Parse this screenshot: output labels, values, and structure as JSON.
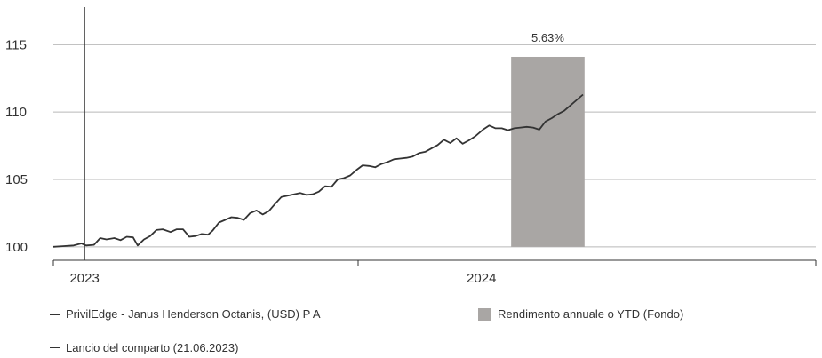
{
  "chart_data": {
    "type": "line",
    "ylim": [
      99,
      117
    ],
    "yticks": [
      100,
      105,
      110,
      115
    ],
    "xticks": [
      {
        "label": "2023",
        "date": "2023-06-21"
      },
      {
        "label": "2024",
        "date": "2024-03-01"
      }
    ],
    "xlim": [
      "2023-06-01",
      "2024-10-01"
    ],
    "launch_date": "2023-06-21",
    "series": [
      {
        "name": "PrivilEdge - Janus Henderson Octanis, (USD) P A",
        "color": "#333333",
        "points": [
          [
            "2023-06-01",
            100.0
          ],
          [
            "2023-06-07",
            100.05
          ],
          [
            "2023-06-14",
            100.1
          ],
          [
            "2023-06-19",
            100.25
          ],
          [
            "2023-06-22",
            100.1
          ],
          [
            "2023-06-27",
            100.15
          ],
          [
            "2023-07-01",
            100.65
          ],
          [
            "2023-07-05",
            100.55
          ],
          [
            "2023-07-10",
            100.65
          ],
          [
            "2023-07-14",
            100.5
          ],
          [
            "2023-07-18",
            100.75
          ],
          [
            "2023-07-22",
            100.7
          ],
          [
            "2023-07-25",
            100.1
          ],
          [
            "2023-07-29",
            100.55
          ],
          [
            "2023-08-02",
            100.8
          ],
          [
            "2023-08-06",
            101.25
          ],
          [
            "2023-08-10",
            101.3
          ],
          [
            "2023-08-15",
            101.1
          ],
          [
            "2023-08-19",
            101.3
          ],
          [
            "2023-08-23",
            101.3
          ],
          [
            "2023-08-27",
            100.75
          ],
          [
            "2023-08-31",
            100.8
          ],
          [
            "2023-09-04",
            100.95
          ],
          [
            "2023-09-08",
            100.9
          ],
          [
            "2023-09-11",
            101.2
          ],
          [
            "2023-09-15",
            101.8
          ],
          [
            "2023-09-19",
            102.0
          ],
          [
            "2023-09-23",
            102.2
          ],
          [
            "2023-09-27",
            102.15
          ],
          [
            "2023-10-01",
            102.0
          ],
          [
            "2023-10-05",
            102.5
          ],
          [
            "2023-10-09",
            102.7
          ],
          [
            "2023-10-13",
            102.4
          ],
          [
            "2023-10-17",
            102.65
          ],
          [
            "2023-10-21",
            103.2
          ],
          [
            "2023-10-25",
            103.7
          ],
          [
            "2023-10-29",
            103.8
          ],
          [
            "2023-11-02",
            103.9
          ],
          [
            "2023-11-06",
            104.0
          ],
          [
            "2023-11-10",
            103.85
          ],
          [
            "2023-11-14",
            103.9
          ],
          [
            "2023-11-18",
            104.1
          ],
          [
            "2023-11-22",
            104.5
          ],
          [
            "2023-11-26",
            104.45
          ],
          [
            "2023-11-30",
            105.0
          ],
          [
            "2023-12-04",
            105.1
          ],
          [
            "2023-12-08",
            105.3
          ],
          [
            "2023-12-12",
            105.7
          ],
          [
            "2023-12-16",
            106.05
          ],
          [
            "2023-12-20",
            106.0
          ],
          [
            "2023-12-24",
            105.9
          ],
          [
            "2023-12-28",
            106.15
          ],
          [
            "2024-01-01",
            106.3
          ],
          [
            "2024-01-05",
            106.5
          ],
          [
            "2024-01-09",
            106.55
          ],
          [
            "2024-01-13",
            106.6
          ],
          [
            "2024-01-17",
            106.7
          ],
          [
            "2024-01-21",
            106.95
          ],
          [
            "2024-01-25",
            107.05
          ],
          [
            "2024-01-29",
            107.3
          ],
          [
            "2024-02-02",
            107.55
          ],
          [
            "2024-02-06",
            107.95
          ],
          [
            "2024-02-10",
            107.7
          ],
          [
            "2024-02-14",
            108.05
          ],
          [
            "2024-02-18",
            107.65
          ],
          [
            "2024-02-22",
            107.9
          ],
          [
            "2024-02-26",
            108.2
          ],
          [
            "2024-03-02",
            108.7
          ],
          [
            "2024-03-06",
            109.0
          ],
          [
            "2024-03-10",
            108.8
          ],
          [
            "2024-03-14",
            108.8
          ],
          [
            "2024-03-18",
            108.65
          ],
          [
            "2024-03-22",
            108.8
          ],
          [
            "2024-03-26",
            108.85
          ],
          [
            "2024-03-30",
            108.9
          ],
          [
            "2024-04-03",
            108.85
          ],
          [
            "2024-04-07",
            108.7
          ],
          [
            "2024-04-11",
            109.3
          ],
          [
            "2024-04-15",
            109.55
          ],
          [
            "2024-04-19",
            109.85
          ],
          [
            "2024-04-23",
            110.1
          ],
          [
            "2024-04-27",
            110.5
          ],
          [
            "2024-05-01",
            110.9
          ],
          [
            "2024-05-05",
            111.3
          ]
        ]
      }
    ],
    "ytd_bar": {
      "name": "Rendimento annuale o YTD (Fondo)",
      "color": "#a9a6a4",
      "start": "2024-03-20",
      "end": "2024-05-06",
      "top": 114.1,
      "label": "5.63%"
    },
    "launch_series": {
      "name": "Lancio del comparto (21.06.2023)",
      "color": "#333333"
    },
    "grid": true,
    "legend_position": "bottom"
  }
}
